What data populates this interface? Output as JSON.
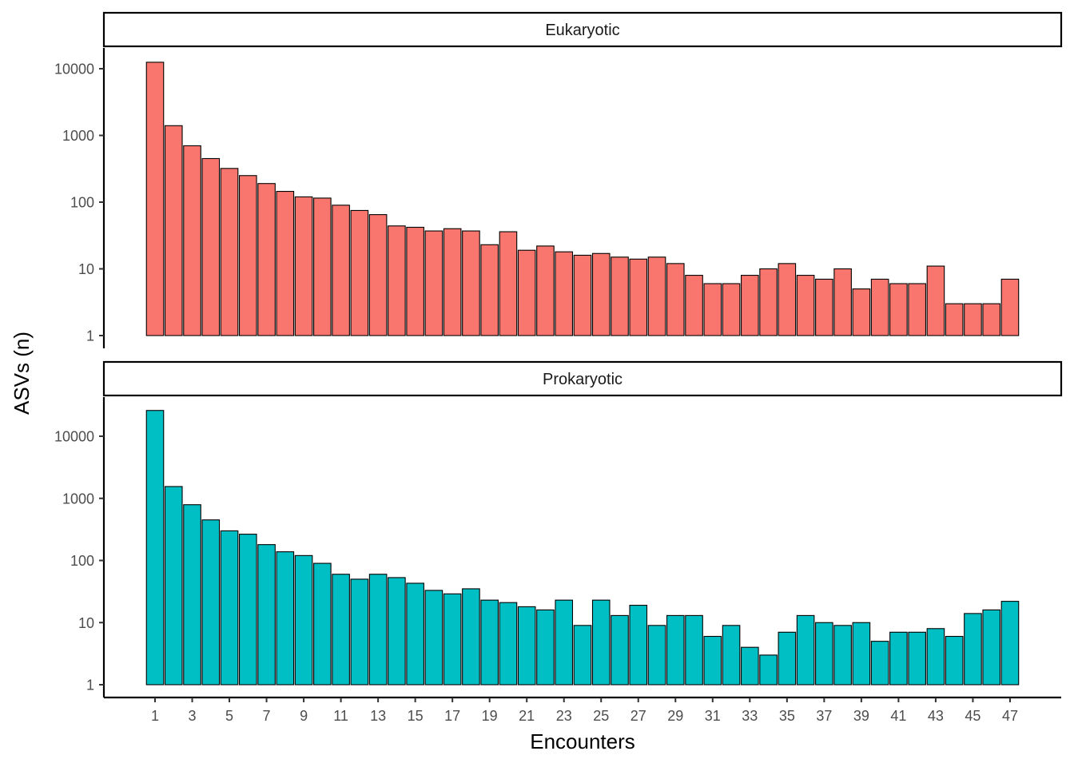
{
  "chart_data": {
    "type": "bar",
    "xlabel": "Encounters",
    "ylabel": "ASVs (n)",
    "y_scale": "log10",
    "ylim": [
      1,
      20000
    ],
    "y_ticks": [
      1,
      10,
      100,
      1000,
      10000
    ],
    "x_ticks": [
      1,
      3,
      5,
      7,
      9,
      11,
      13,
      15,
      17,
      19,
      21,
      23,
      25,
      27,
      29,
      31,
      33,
      35,
      37,
      39,
      41,
      43,
      45,
      47
    ],
    "x": [
      1,
      2,
      3,
      4,
      5,
      6,
      7,
      8,
      9,
      10,
      11,
      12,
      13,
      14,
      15,
      16,
      17,
      18,
      19,
      20,
      21,
      22,
      23,
      24,
      25,
      26,
      27,
      28,
      29,
      30,
      31,
      32,
      33,
      34,
      35,
      36,
      37,
      38,
      39,
      40,
      41,
      42,
      43,
      44,
      45,
      46,
      47
    ],
    "bar_outline": "#000000",
    "panels": [
      {
        "label": "Eukaryotic",
        "color": "#F8766D",
        "values": [
          12500,
          1400,
          700,
          450,
          320,
          250,
          190,
          145,
          120,
          115,
          90,
          75,
          65,
          44,
          42,
          37,
          40,
          37,
          23,
          36,
          19,
          22,
          18,
          16,
          17,
          15,
          14,
          15,
          12,
          8,
          6,
          6,
          8,
          10,
          12,
          8,
          7,
          10,
          5,
          7,
          6,
          6,
          11,
          3,
          3,
          3,
          7
        ]
      },
      {
        "label": "Prokaryotic",
        "color": "#00BFC4",
        "values": [
          26000,
          1550,
          790,
          450,
          300,
          265,
          180,
          138,
          120,
          90,
          60,
          50,
          60,
          53,
          43,
          33,
          29,
          35,
          23,
          21,
          18,
          16,
          23,
          9,
          23,
          13,
          19,
          9,
          13,
          13,
          6,
          9,
          4,
          3,
          7,
          13,
          10,
          9,
          10,
          5,
          7,
          7,
          8,
          6,
          14,
          16,
          22
        ]
      }
    ]
  }
}
